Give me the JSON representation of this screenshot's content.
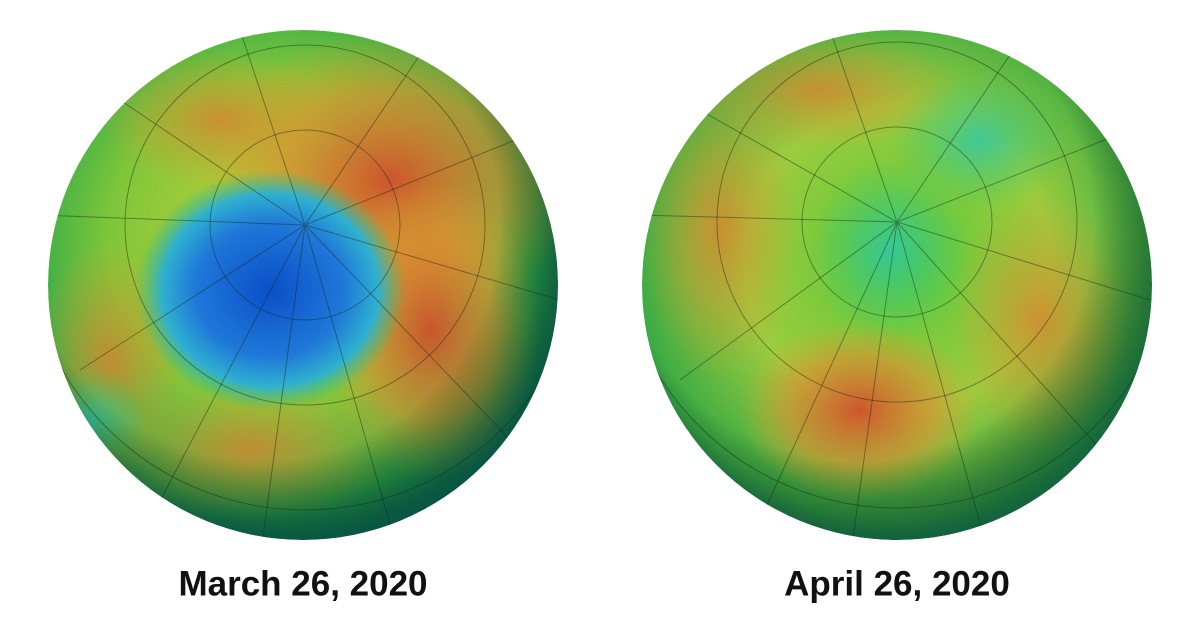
{
  "panels": [
    {
      "caption": "March 26, 2020"
    },
    {
      "caption": "April 26, 2020"
    }
  ]
}
